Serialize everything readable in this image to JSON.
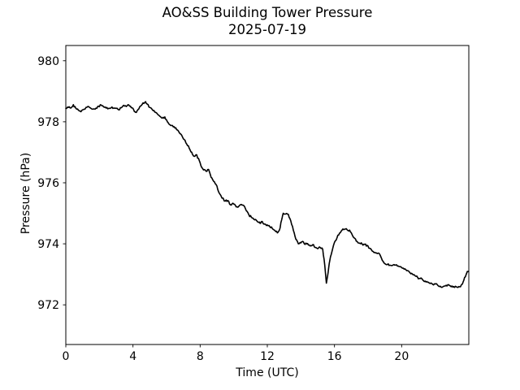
{
  "figure": {
    "title": "AO&SS Building Tower Pressure",
    "subtitle": "2025-07-19"
  },
  "chart_data": {
    "type": "line",
    "title": "AO&SS Building Tower Pressure",
    "subtitle": "2025-07-19",
    "xlabel": "Time (UTC)",
    "ylabel": "Pressure (hPa)",
    "xlim": [
      0,
      24
    ],
    "ylim": [
      970.7,
      980.5
    ],
    "xticks": [
      0,
      4,
      8,
      12,
      16,
      20
    ],
    "yticks": [
      972,
      974,
      976,
      978,
      980
    ],
    "grid": false,
    "legend": "none",
    "line_color": "#000000",
    "background": "#ffffff",
    "series": [
      {
        "name": "pressure",
        "units": "hPa",
        "points": [
          [
            0.0,
            978.44
          ],
          [
            0.15,
            978.47
          ],
          [
            0.3,
            978.45
          ],
          [
            0.45,
            978.56
          ],
          [
            0.6,
            978.44
          ],
          [
            0.75,
            978.38
          ],
          [
            0.9,
            978.33
          ],
          [
            1.05,
            978.4
          ],
          [
            1.2,
            978.47
          ],
          [
            1.35,
            978.5
          ],
          [
            1.5,
            978.44
          ],
          [
            1.65,
            978.42
          ],
          [
            1.8,
            978.45
          ],
          [
            1.95,
            978.51
          ],
          [
            2.1,
            978.55
          ],
          [
            2.25,
            978.49
          ],
          [
            2.4,
            978.45
          ],
          [
            2.55,
            978.44
          ],
          [
            2.7,
            978.46
          ],
          [
            2.85,
            978.45
          ],
          [
            3.0,
            978.44
          ],
          [
            3.15,
            978.39
          ],
          [
            3.3,
            978.46
          ],
          [
            3.45,
            978.54
          ],
          [
            3.6,
            978.5
          ],
          [
            3.75,
            978.55
          ],
          [
            3.9,
            978.46
          ],
          [
            4.05,
            978.38
          ],
          [
            4.15,
            978.31
          ],
          [
            4.3,
            978.4
          ],
          [
            4.45,
            978.52
          ],
          [
            4.6,
            978.62
          ],
          [
            4.75,
            978.66
          ],
          [
            4.85,
            978.58
          ],
          [
            5.0,
            978.47
          ],
          [
            5.15,
            978.4
          ],
          [
            5.3,
            978.32
          ],
          [
            5.45,
            978.26
          ],
          [
            5.6,
            978.18
          ],
          [
            5.75,
            978.12
          ],
          [
            5.9,
            978.16
          ],
          [
            6.0,
            978.06
          ],
          [
            6.15,
            977.92
          ],
          [
            6.3,
            977.88
          ],
          [
            6.45,
            977.84
          ],
          [
            6.6,
            977.74
          ],
          [
            6.75,
            977.65
          ],
          [
            6.9,
            977.56
          ],
          [
            7.05,
            977.42
          ],
          [
            7.2,
            977.27
          ],
          [
            7.35,
            977.13
          ],
          [
            7.5,
            977.0
          ],
          [
            7.6,
            976.88
          ],
          [
            7.75,
            976.92
          ],
          [
            7.9,
            976.8
          ],
          [
            8.05,
            976.55
          ],
          [
            8.2,
            976.42
          ],
          [
            8.35,
            976.38
          ],
          [
            8.5,
            976.44
          ],
          [
            8.65,
            976.18
          ],
          [
            8.8,
            976.05
          ],
          [
            8.95,
            975.94
          ],
          [
            9.1,
            975.7
          ],
          [
            9.3,
            975.5
          ],
          [
            9.5,
            975.4
          ],
          [
            9.65,
            975.42
          ],
          [
            9.8,
            975.28
          ],
          [
            9.95,
            975.33
          ],
          [
            10.1,
            975.26
          ],
          [
            10.25,
            975.2
          ],
          [
            10.45,
            975.29
          ],
          [
            10.6,
            975.25
          ],
          [
            10.75,
            975.08
          ],
          [
            10.9,
            974.95
          ],
          [
            11.05,
            974.87
          ],
          [
            11.2,
            974.8
          ],
          [
            11.35,
            974.77
          ],
          [
            11.5,
            974.7
          ],
          [
            11.6,
            974.67
          ],
          [
            11.7,
            974.73
          ],
          [
            11.85,
            974.65
          ],
          [
            12.0,
            974.62
          ],
          [
            12.15,
            974.56
          ],
          [
            12.3,
            974.5
          ],
          [
            12.45,
            974.44
          ],
          [
            12.6,
            974.36
          ],
          [
            12.72,
            974.45
          ],
          [
            12.85,
            974.78
          ],
          [
            12.95,
            975.0
          ],
          [
            13.1,
            974.98
          ],
          [
            13.25,
            974.97
          ],
          [
            13.4,
            974.75
          ],
          [
            13.55,
            974.45
          ],
          [
            13.7,
            974.15
          ],
          [
            13.85,
            974.0
          ],
          [
            14.0,
            974.03
          ],
          [
            14.1,
            974.08
          ],
          [
            14.25,
            973.98
          ],
          [
            14.4,
            974.01
          ],
          [
            14.55,
            973.93
          ],
          [
            14.7,
            973.97
          ],
          [
            14.85,
            973.88
          ],
          [
            15.0,
            973.84
          ],
          [
            15.15,
            973.88
          ],
          [
            15.3,
            973.82
          ],
          [
            15.42,
            973.3
          ],
          [
            15.52,
            972.71
          ],
          [
            15.62,
            973.05
          ],
          [
            15.72,
            973.45
          ],
          [
            15.85,
            973.75
          ],
          [
            16.0,
            974.05
          ],
          [
            16.15,
            974.2
          ],
          [
            16.3,
            974.35
          ],
          [
            16.45,
            974.45
          ],
          [
            16.6,
            974.48
          ],
          [
            16.75,
            974.46
          ],
          [
            16.9,
            974.45
          ],
          [
            17.05,
            974.3
          ],
          [
            17.2,
            974.18
          ],
          [
            17.35,
            974.08
          ],
          [
            17.5,
            974.02
          ],
          [
            17.65,
            973.99
          ],
          [
            17.8,
            973.98
          ],
          [
            17.95,
            973.95
          ],
          [
            18.1,
            973.85
          ],
          [
            18.25,
            973.76
          ],
          [
            18.4,
            973.72
          ],
          [
            18.55,
            973.68
          ],
          [
            18.7,
            973.65
          ],
          [
            18.85,
            973.45
          ],
          [
            19.0,
            973.35
          ],
          [
            19.15,
            973.32
          ],
          [
            19.3,
            973.3
          ],
          [
            19.45,
            973.29
          ],
          [
            19.6,
            973.3
          ],
          [
            19.75,
            973.27
          ],
          [
            19.9,
            973.25
          ],
          [
            20.05,
            973.2
          ],
          [
            20.2,
            973.18
          ],
          [
            20.35,
            973.12
          ],
          [
            20.5,
            973.05
          ],
          [
            20.65,
            973.0
          ],
          [
            20.8,
            972.95
          ],
          [
            20.95,
            972.9
          ],
          [
            21.1,
            972.86
          ],
          [
            21.25,
            972.82
          ],
          [
            21.4,
            972.78
          ],
          [
            21.55,
            972.74
          ],
          [
            21.7,
            972.7
          ],
          [
            21.85,
            972.67
          ],
          [
            22.0,
            972.68
          ],
          [
            22.15,
            972.64
          ],
          [
            22.3,
            972.61
          ],
          [
            22.45,
            972.59
          ],
          [
            22.6,
            972.62
          ],
          [
            22.75,
            972.66
          ],
          [
            22.9,
            972.62
          ],
          [
            23.05,
            972.58
          ],
          [
            23.2,
            972.61
          ],
          [
            23.35,
            972.57
          ],
          [
            23.5,
            972.59
          ],
          [
            23.62,
            972.68
          ],
          [
            23.75,
            972.9
          ],
          [
            23.88,
            973.05
          ],
          [
            23.98,
            973.1
          ]
        ]
      }
    ]
  }
}
